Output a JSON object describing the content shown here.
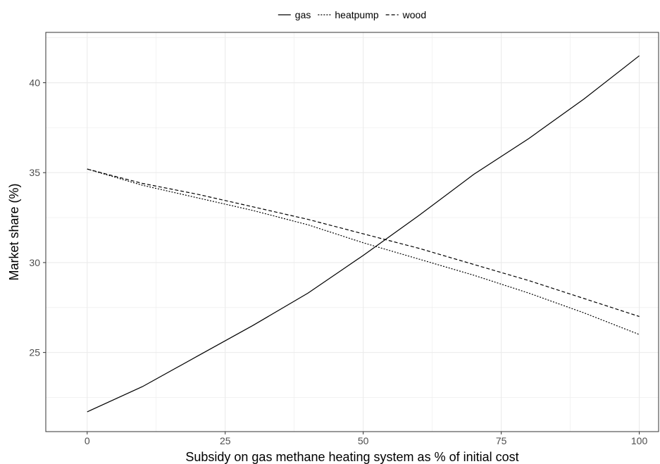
{
  "chart_data": {
    "type": "line",
    "xlabel": "Subsidy on gas methane heating system as % of initial cost",
    "ylabel": "Market share (%)",
    "xlim": [
      -7.5,
      103.5
    ],
    "ylim": [
      20.6,
      42.8
    ],
    "x_ticks": [
      0,
      25,
      50,
      75,
      100
    ],
    "x_tick_labels": [
      "0",
      "25",
      "50",
      "75",
      "100"
    ],
    "y_ticks": [
      25,
      30,
      35,
      40
    ],
    "y_tick_labels": [
      "25",
      "30",
      "35",
      "40"
    ],
    "grid": true,
    "legend_position": "top",
    "x": [
      0,
      10,
      20,
      30,
      40,
      50,
      60,
      70,
      80,
      90,
      100
    ],
    "series": [
      {
        "name": "gas",
        "dash": "solid",
        "values": [
          21.7,
          23.1,
          24.8,
          26.5,
          28.3,
          30.4,
          32.6,
          34.9,
          36.9,
          39.1,
          41.5
        ]
      },
      {
        "name": "heatpump",
        "dash": "dotted",
        "values": [
          35.2,
          34.3,
          33.6,
          32.9,
          32.1,
          31.1,
          30.2,
          29.3,
          28.3,
          27.2,
          26.0
        ]
      },
      {
        "name": "wood",
        "dash": "dashed",
        "values": [
          35.2,
          34.4,
          33.8,
          33.1,
          32.4,
          31.6,
          30.8,
          29.9,
          29.0,
          28.0,
          27.0
        ]
      }
    ],
    "colors": {
      "line": "#000000",
      "grid": "#ebebeb",
      "panel_border": "#333333",
      "tick_text": "#4d4d4d"
    }
  }
}
